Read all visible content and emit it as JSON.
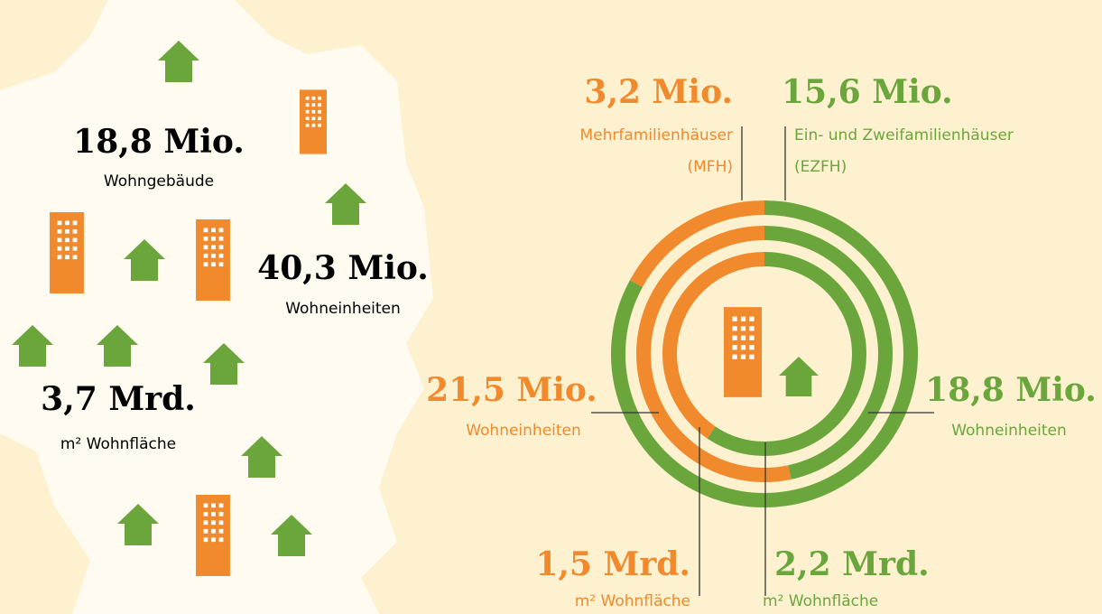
{
  "totals": [
    {
      "value": "18,8 Mio.",
      "label": "Wohngebäude"
    },
    {
      "value": "40,3 Mio.",
      "label": "Wohneinheiten"
    },
    {
      "value": "3,7 Mrd.",
      "label": "m² Wohnfläche"
    }
  ],
  "chart_data": {
    "type": "donut",
    "categories": [
      null,
      "Wohneinheiten",
      "m² Wohnfläche"
    ],
    "series": [
      {
        "name": "Mehrfamilienhäuser",
        "note": "(MFH)",
        "color": "#f08a2c",
        "values": [
          3.2,
          21.5,
          1.5
        ],
        "value_labels": [
          "3,2 Mio.",
          "21,5 Mio.",
          "1,5 Mrd."
        ]
      },
      {
        "name": "Ein- und Zweifamilienhäuser",
        "note": "(EZFH)",
        "color": "#6aa63b",
        "values": [
          15.6,
          18.8,
          2.2
        ],
        "value_labels": [
          "15,6 Mio.",
          "18,8 Mio.",
          "2,2 Mrd."
        ]
      }
    ]
  }
}
